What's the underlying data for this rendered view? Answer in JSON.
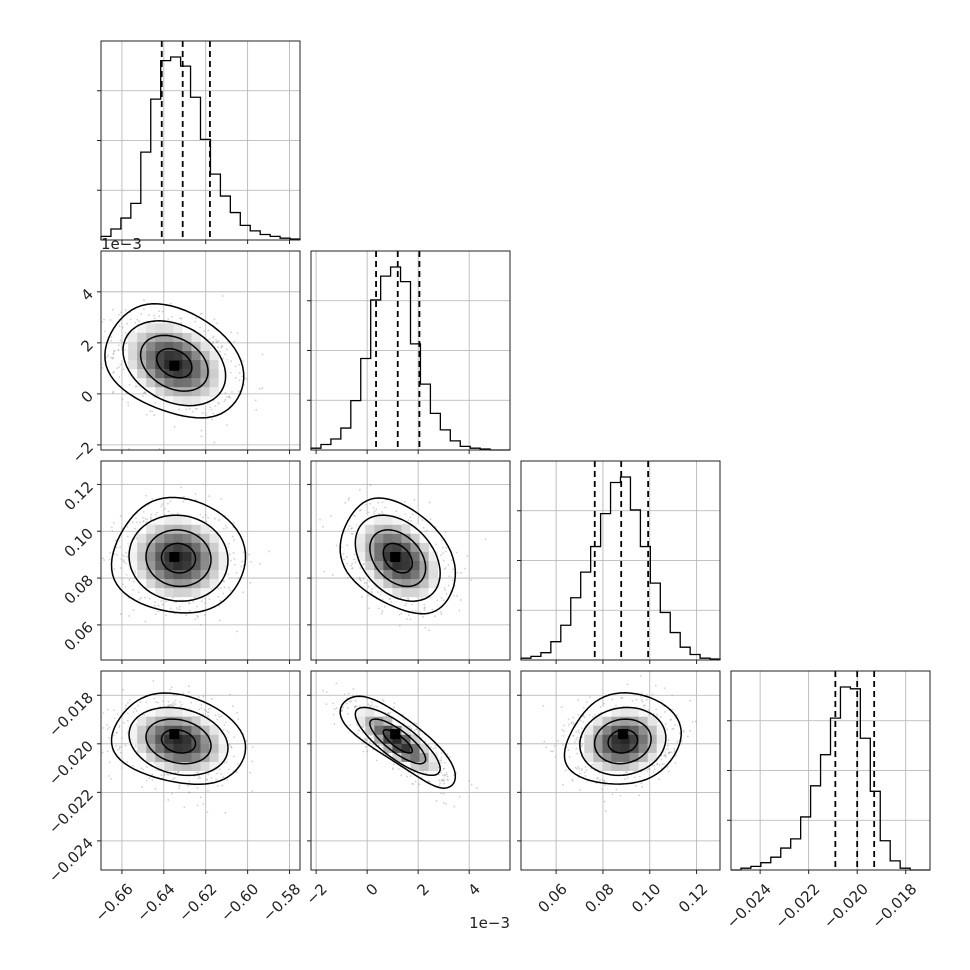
{
  "chart_data": {
    "type": "corner",
    "grid": true,
    "params": [
      {
        "range": [
          -0.67,
          -0.575
        ],
        "ticks": [
          -0.66,
          -0.64,
          -0.62,
          -0.6,
          -0.58
        ],
        "tick_labels": [
          "−0.66",
          "−0.64",
          "−0.62",
          "−0.60",
          "−0.58"
        ],
        "offset_label": "",
        "quantiles": [
          -0.641,
          -0.631,
          -0.618
        ],
        "hist": [
          0.02,
          0.06,
          0.12,
          0.2,
          0.48,
          0.77,
          0.98,
          1.0,
          0.95,
          0.78,
          0.55,
          0.36,
          0.24,
          0.15,
          0.08,
          0.05,
          0.03,
          0.02,
          0.01,
          0.005
        ]
      },
      {
        "range": [
          -2.2,
          5.6
        ],
        "ticks": [
          -2,
          0,
          2,
          4
        ],
        "tick_labels": [
          "−2",
          "0",
          "2",
          "4"
        ],
        "offset_label": "1e−3",
        "quantiles": [
          0.35,
          1.2,
          2.05
        ],
        "hist": [
          0.01,
          0.03,
          0.06,
          0.12,
          0.27,
          0.5,
          0.82,
          0.95,
          1.0,
          0.92,
          0.58,
          0.36,
          0.2,
          0.11,
          0.05,
          0.02,
          0.01,
          0.005,
          0.0,
          0.0
        ]
      },
      {
        "range": [
          0.045,
          0.13
        ],
        "ticks": [
          0.06,
          0.08,
          0.1,
          0.12
        ],
        "tick_labels": [
          "0.06",
          "0.08",
          "0.10",
          "0.12"
        ],
        "offset_label": "",
        "quantiles": [
          0.0765,
          0.0878,
          0.0993
        ],
        "hist": [
          0.01,
          0.02,
          0.04,
          0.1,
          0.19,
          0.34,
          0.48,
          0.62,
          0.8,
          0.97,
          1.0,
          0.82,
          0.62,
          0.42,
          0.26,
          0.15,
          0.07,
          0.03,
          0.01,
          0.005
        ]
      },
      {
        "range": [
          -0.0252,
          -0.017
        ],
        "ticks": [
          -0.024,
          -0.022,
          -0.02,
          -0.018
        ],
        "tick_labels": [
          "−0.024",
          "−0.022",
          "−0.020",
          "−0.018"
        ],
        "offset_label": "",
        "quantiles": [
          -0.0209,
          -0.02,
          -0.0193
        ],
        "hist": [
          0.0,
          0.01,
          0.02,
          0.04,
          0.07,
          0.12,
          0.17,
          0.29,
          0.46,
          0.63,
          0.83,
          1.0,
          0.99,
          0.72,
          0.43,
          0.16,
          0.05,
          0.01,
          0.0,
          0.0
        ]
      }
    ],
    "pairs": [
      {
        "row": 1,
        "col": 0,
        "center": [
          -0.635,
          1.2
        ],
        "sd": [
          0.014,
          0.95
        ],
        "rho": -0.3,
        "peak": [
          -0.635,
          1.1
        ]
      },
      {
        "row": 2,
        "col": 0,
        "center": [
          -0.633,
          0.0885
        ],
        "sd": [
          0.0135,
          0.0105
        ],
        "rho": -0.05,
        "peak": [
          -0.635,
          0.089
        ]
      },
      {
        "row": 2,
        "col": 1,
        "center": [
          1.2,
          0.0885
        ],
        "sd": [
          0.95,
          0.0105
        ],
        "rho": -0.35,
        "peak": [
          1.1,
          0.089
        ]
      },
      {
        "row": 3,
        "col": 0,
        "center": [
          -0.633,
          -0.0199
        ],
        "sd": [
          0.0135,
          0.0008
        ],
        "rho": -0.2,
        "peak": [
          -0.635,
          -0.0196
        ]
      },
      {
        "row": 3,
        "col": 1,
        "center": [
          1.2,
          -0.0199
        ],
        "sd": [
          0.95,
          0.0008
        ],
        "rho": -0.8,
        "peak": [
          1.1,
          -0.0196
        ]
      },
      {
        "row": 3,
        "col": 2,
        "center": [
          0.0885,
          -0.0199
        ],
        "sd": [
          0.0105,
          0.0008
        ],
        "rho": 0.1,
        "peak": [
          0.0885,
          -0.0196
        ]
      }
    ]
  }
}
